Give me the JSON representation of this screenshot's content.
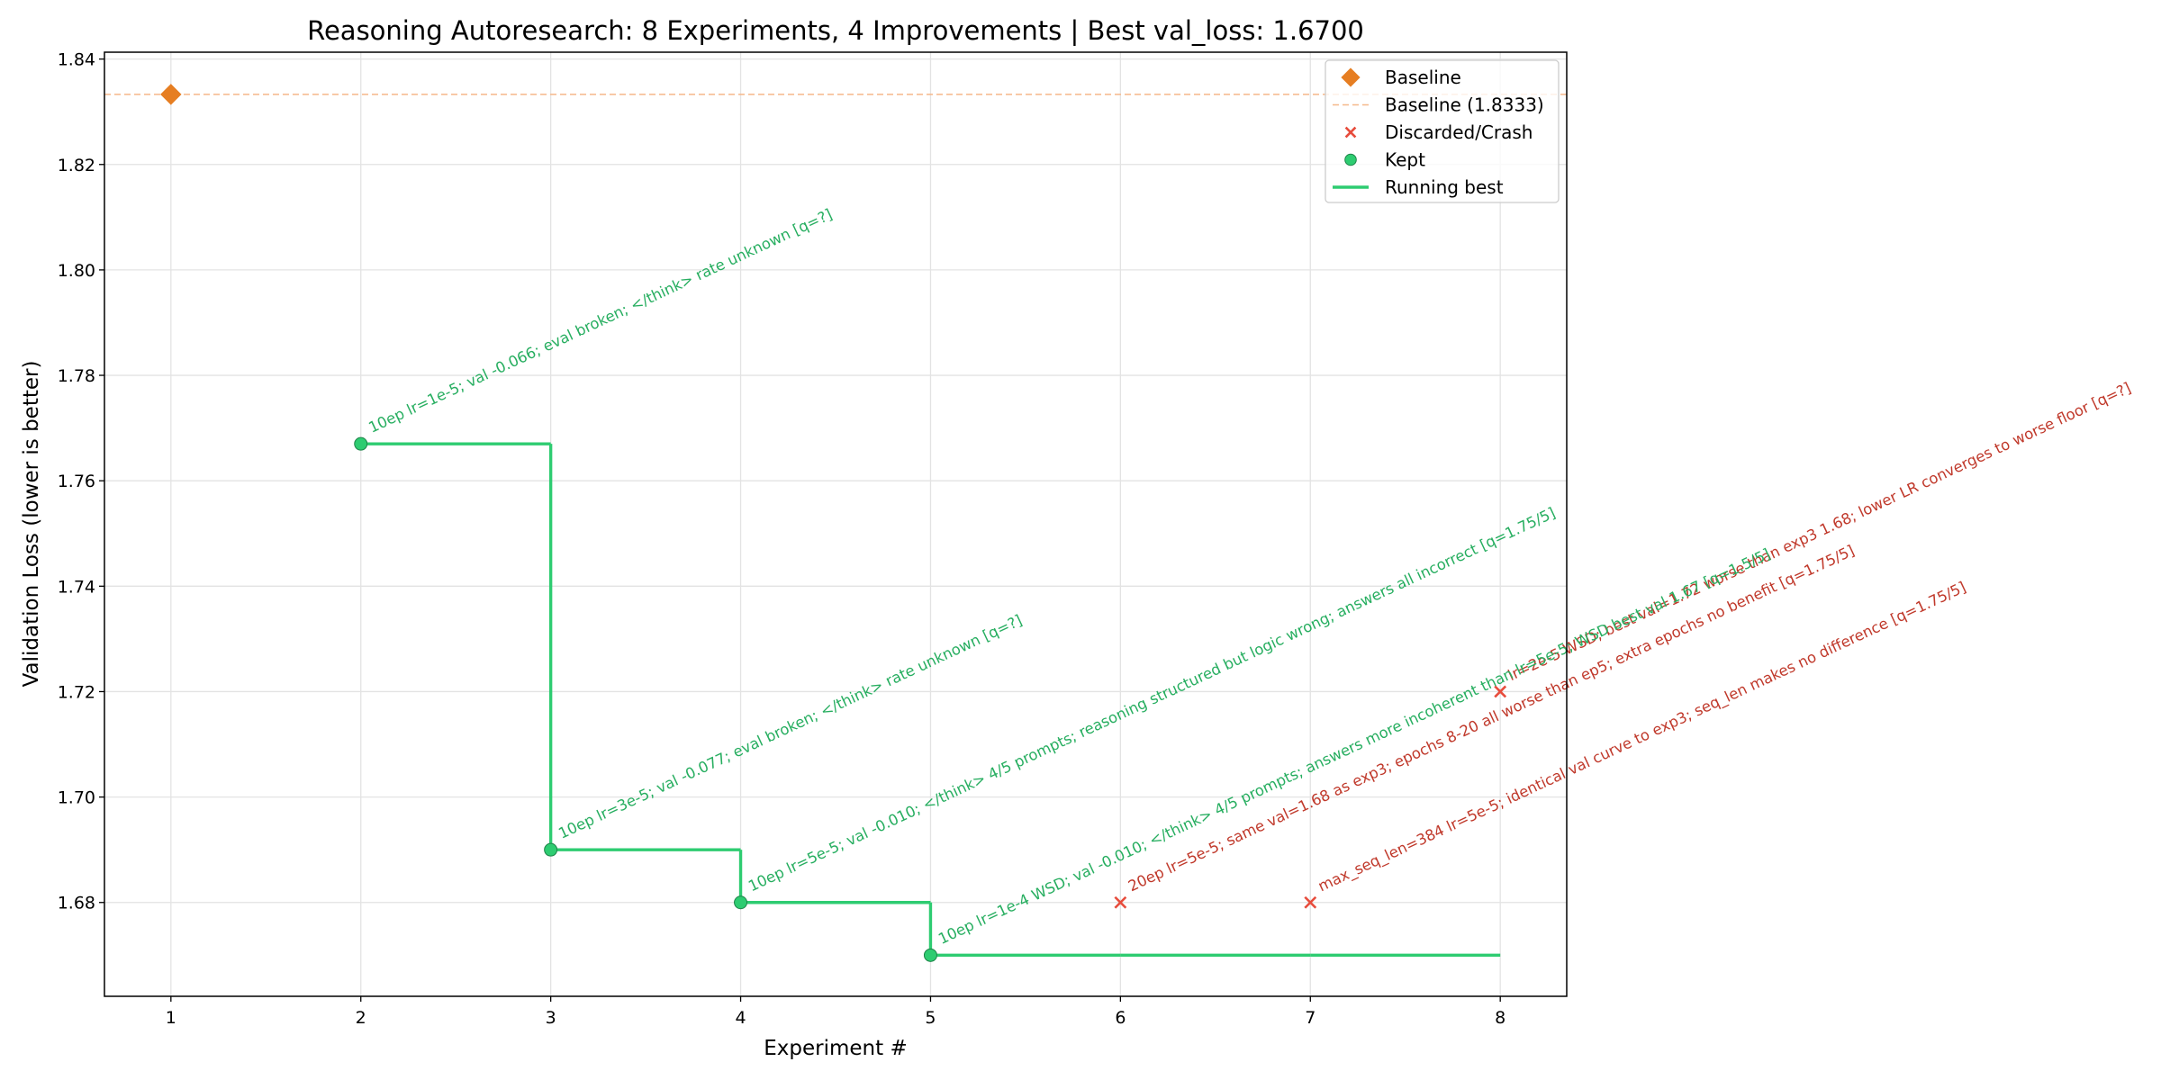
{
  "chart_data": {
    "type": "scatter",
    "title": "Reasoning Autoresearch: 8 Experiments, 4 Improvements | Best val_loss: 1.6700",
    "xlabel": "Experiment #",
    "ylabel": "Validation Loss (lower is better)",
    "xlim": [
      0.65,
      8.35
    ],
    "ylim": [
      1.6622,
      1.8413
    ],
    "xticks": [
      1,
      2,
      3,
      4,
      5,
      6,
      7,
      8
    ],
    "yticks": [
      1.68,
      {
        "value": 1.7,
        "label": "1.70"
      },
      1.72,
      1.74,
      1.76,
      1.78,
      {
        "value": 1.8,
        "label": "1.80"
      },
      1.82,
      1.84
    ],
    "grid": true,
    "legend": "upper right",
    "series": [
      {
        "name": "Baseline",
        "kind": "points",
        "marker": "diamond",
        "color": "#e67e22",
        "x": [
          1
        ],
        "values": [
          1.8333
        ]
      },
      {
        "name": "Baseline (1.8333)",
        "kind": "hline",
        "color": "#f5b88a",
        "values": [
          1.8333
        ]
      },
      {
        "name": "Discarded/Crash",
        "kind": "points",
        "marker": "x",
        "color": "#e74c3c",
        "label_color": "#c0392b",
        "x": [
          6,
          7,
          8
        ],
        "values": [
          1.68,
          1.68,
          1.72
        ],
        "labels": [
          "20ep lr=5e-5; same val=1.68 as exp3; epochs 8-20 all worse than ep5; extra epochs no benefit  [q=1.75/5]",
          "max_seq_len=384 lr=5e-5; identical val curve to exp3; seq_len makes no difference  [q=1.75/5]",
          "lr=2e-5 WSD; best val=1.72 worse than exp3 1.68; lower LR converges to worse floor  [q=?]"
        ]
      },
      {
        "name": "Kept",
        "kind": "points",
        "marker": "circle",
        "color": "#2ecc71",
        "label_color": "#27ae60",
        "x": [
          2,
          3,
          4,
          5
        ],
        "values": [
          1.767,
          1.69,
          1.68,
          1.67
        ],
        "labels": [
          "10ep lr=1e-5; val -0.066; eval broken; </think> rate unknown  [q=?]",
          "10ep lr=3e-5; val -0.077; eval broken; </think> rate unknown  [q=?]",
          "10ep lr=5e-5; val -0.010; </think> 4/5 prompts; reasoning structured but logic wrong; answers all incorrect  [q=1.75/5]",
          "10ep lr=1e-4 WSD; val -0.010; </think> 4/5 prompts; answers more incoherent than lr=5e-5; WSD best val 1.67  [q=1.5/5]"
        ]
      },
      {
        "name": "Running best",
        "kind": "step",
        "color": "#2ecc71",
        "x": [
          2,
          3,
          4,
          5,
          6,
          7,
          8
        ],
        "values": [
          1.767,
          1.69,
          1.68,
          1.67,
          1.67,
          1.67,
          1.67
        ]
      }
    ]
  }
}
